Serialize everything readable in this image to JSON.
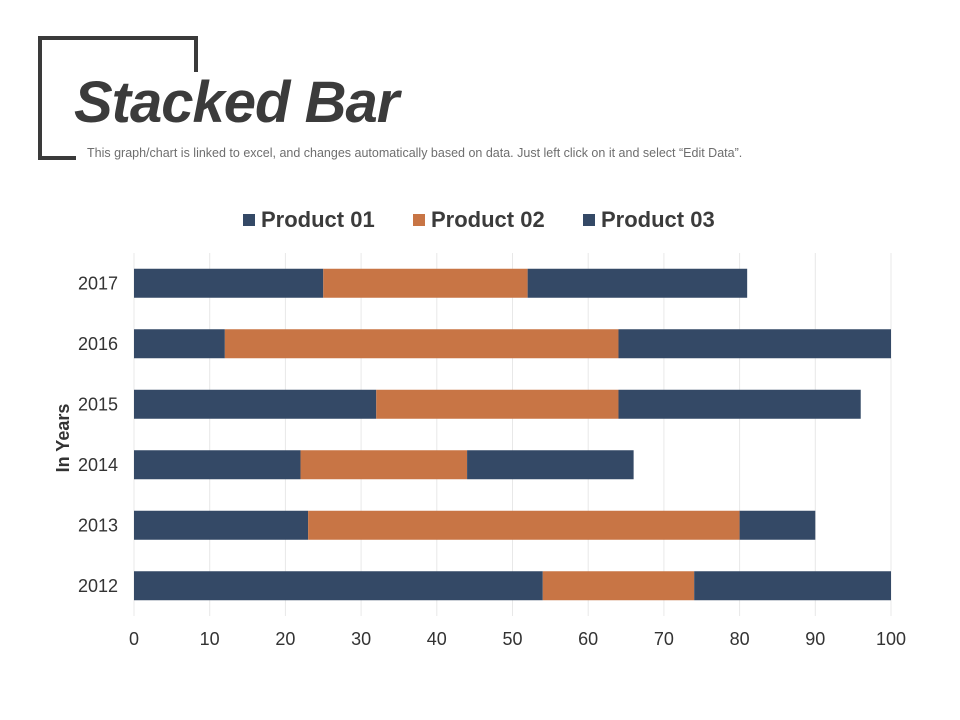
{
  "header": {
    "title": "Stacked Bar",
    "subtitle": "This graph/chart is linked to excel, and changes automatically based on data. Just left click on it and select “Edit Data”."
  },
  "colors": {
    "product_01": "#344966",
    "product_02": "#c87545",
    "product_03": "#344966",
    "grid": "#e8e8e8",
    "text": "#333333"
  },
  "chart_data": {
    "type": "bar",
    "orientation": "horizontal",
    "stacked": true,
    "categories": [
      "2017",
      "2016",
      "2015",
      "2014",
      "2013",
      "2012"
    ],
    "series": [
      {
        "name": "Product 01",
        "values": [
          25,
          12,
          32,
          22,
          23,
          54
        ]
      },
      {
        "name": "Product 02",
        "values": [
          27,
          52,
          32,
          22,
          57,
          20
        ]
      },
      {
        "name": "Product 03",
        "values": [
          29,
          36,
          32,
          22,
          10,
          26
        ]
      }
    ],
    "xlim": [
      0,
      100
    ],
    "xticks": [
      "0",
      "10",
      "20",
      "30",
      "40",
      "50",
      "60",
      "70",
      "80",
      "90",
      "100"
    ],
    "xlabel": "",
    "ylabel": "In Years",
    "title": "",
    "legend": "top-center",
    "grid": true
  }
}
